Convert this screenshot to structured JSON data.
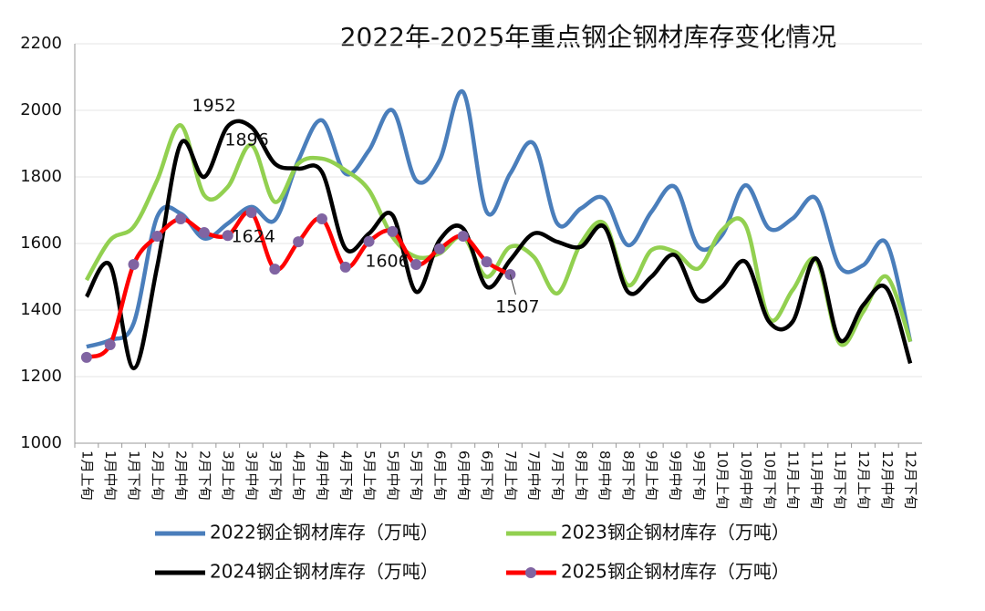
{
  "chart_data": {
    "type": "line",
    "title": "2022年-2025年重点钢企钢材库存变化情况",
    "categories": [
      "1月上旬",
      "1月中旬",
      "1月下旬",
      "2月上旬",
      "2月中旬",
      "2月下旬",
      "3月上旬",
      "3月中旬",
      "3月下旬",
      "4月上旬",
      "4月中旬",
      "4月下旬",
      "5月上旬",
      "5月中旬",
      "5月下旬",
      "6月上旬",
      "6月中旬",
      "6月下旬",
      "7月上旬",
      "7月中旬",
      "7月下旬",
      "8月上旬",
      "8月中旬",
      "8月下旬",
      "9月上旬",
      "9月中旬",
      "9月下旬",
      "10月上旬",
      "10月中旬",
      "10月下旬",
      "11月上旬",
      "11月中旬",
      "11月下旬",
      "12月上旬",
      "12月中旬",
      "12月下旬"
    ],
    "series": [
      {
        "name": "2022钢企钢材库存（万吨）",
        "color": "#4a7ebb",
        "values": [
          1290,
          1310,
          1360,
          1680,
          1690,
          1615,
          1660,
          1710,
          1670,
          1850,
          1970,
          1810,
          1880,
          2000,
          1790,
          1850,
          2055,
          1695,
          1810,
          1900,
          1660,
          1705,
          1735,
          1595,
          1695,
          1770,
          1590,
          1625,
          1775,
          1645,
          1675,
          1735,
          1530,
          1535,
          1600,
          1305
        ]
      },
      {
        "name": "2023钢企钢材库存（万吨）",
        "color": "#92d050",
        "values": [
          1490,
          1610,
          1650,
          1790,
          1955,
          1745,
          1770,
          1896,
          1725,
          1840,
          1855,
          1820,
          1760,
          1620,
          1560,
          1570,
          1620,
          1500,
          1590,
          1560,
          1450,
          1600,
          1660,
          1475,
          1580,
          1575,
          1525,
          1640,
          1655,
          1375,
          1460,
          1550,
          1300,
          1395,
          1500,
          1305
        ]
      },
      {
        "name": "2024钢企钢材库存（万吨）",
        "color": "#000000",
        "values": [
          1440,
          1535,
          1225,
          1530,
          1900,
          1800,
          1952,
          1950,
          1840,
          1825,
          1815,
          1585,
          1630,
          1685,
          1455,
          1610,
          1645,
          1470,
          1550,
          1630,
          1605,
          1590,
          1650,
          1455,
          1500,
          1565,
          1430,
          1470,
          1545,
          1365,
          1365,
          1555,
          1310,
          1415,
          1465,
          1240
        ]
      },
      {
        "name": "2025钢企钢材库存（万吨）",
        "color": "#ff0000",
        "marker_color": "#8064a2",
        "values": [
          1258,
          1296,
          1537,
          1622,
          1674,
          1633,
          1624,
          1693,
          1523,
          1605,
          1674,
          1529,
          1606,
          1636,
          1537,
          1584,
          1622,
          1545,
          1507,
          null,
          null,
          null,
          null,
          null,
          null,
          null,
          null,
          null,
          null,
          null,
          null,
          null,
          null,
          null,
          null,
          null
        ]
      }
    ],
    "ylim": [
      1000,
      2200
    ],
    "yticks": [
      1000,
      1200,
      1400,
      1600,
      1800,
      2000,
      2200
    ],
    "grid": true,
    "legend": "bottom"
  }
}
